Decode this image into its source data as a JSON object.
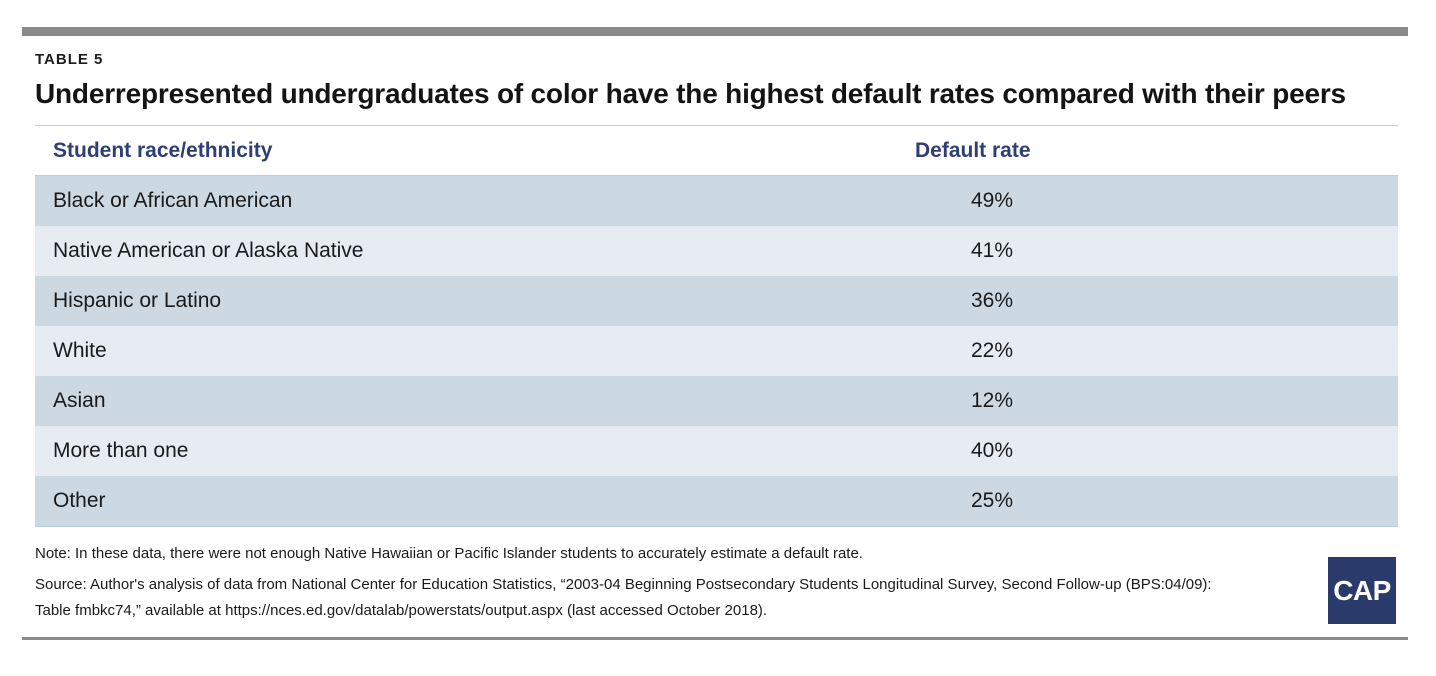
{
  "eyebrow": "TABLE 5",
  "title": "Underrepresented undergraduates of color have the highest default rates compared with their peers",
  "note": "Note: In these data, there were not enough Native Hawaiian or Pacific Islander students to accurately estimate a default rate.",
  "source": "Source: Author's analysis of data from National Center for Education Statistics, “2003-04 Beginning Postsecondary Students Longitudinal Survey, Second Follow-up (BPS:04/09): Table fmbkc74,” available at https://nces.ed.gov/datalab/powerstats/output.aspx (last accessed October 2018).",
  "logo_text": "CAP",
  "colors": {
    "header_text": "#2f3f73",
    "row_dark": "#ccd8e2",
    "row_light": "#e6ecf2",
    "rule": "#8a8a8a",
    "logo_bg": "#2a3a6b"
  },
  "chart_data": {
    "type": "table",
    "title": "Underrepresented undergraduates of color have the highest default rates compared with their peers",
    "columns": [
      "Student race/ethnicity",
      "Default rate"
    ],
    "rows": [
      [
        "Black or African American",
        "49%"
      ],
      [
        "Native American or Alaska Native",
        "41%"
      ],
      [
        "Hispanic or Latino",
        "36%"
      ],
      [
        "White",
        "22%"
      ],
      [
        "Asian",
        "12%"
      ],
      [
        "More than one",
        "40%"
      ],
      [
        "Other",
        "25%"
      ]
    ],
    "categories": [
      "Black or African American",
      "Native American or Alaska Native",
      "Hispanic or Latino",
      "White",
      "Asian",
      "More than one",
      "Other"
    ],
    "values": [
      49,
      41,
      36,
      22,
      12,
      40,
      25
    ]
  }
}
